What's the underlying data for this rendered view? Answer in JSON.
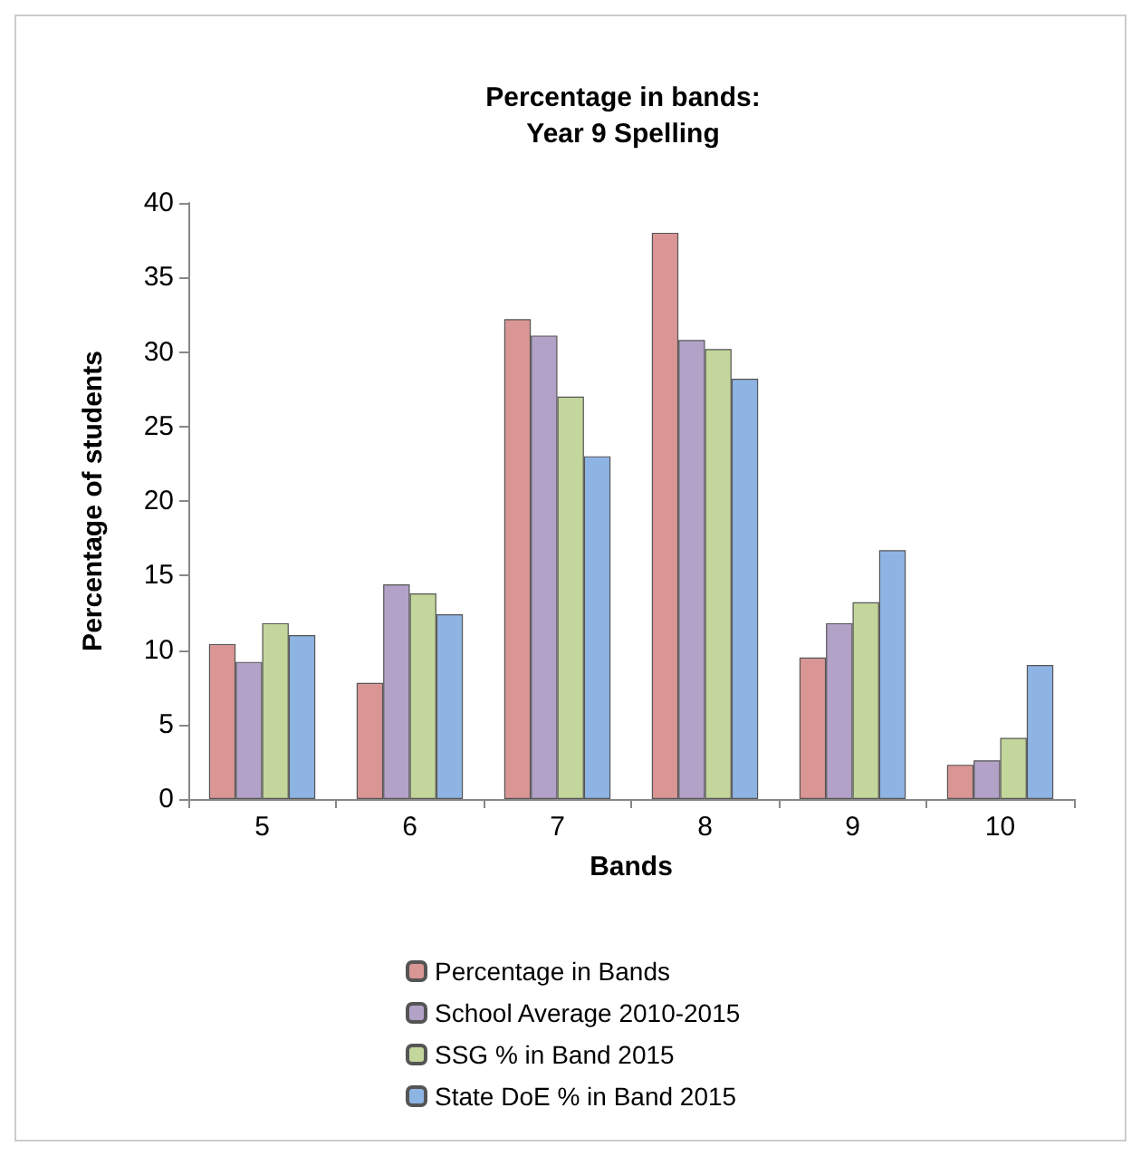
{
  "chart_data": {
    "type": "bar",
    "title": "Percentage in bands:\nYear 9 Spelling",
    "xlabel": "Bands",
    "ylabel": "Percentage of students",
    "categories": [
      "5",
      "6",
      "7",
      "8",
      "9",
      "10"
    ],
    "series": [
      {
        "name": "Percentage in Bands",
        "color": "#d99694",
        "values": [
          10.4,
          7.8,
          32.2,
          38.0,
          9.5,
          2.3
        ]
      },
      {
        "name": "School Average 2010-2015",
        "color": "#b3a2c7",
        "values": [
          9.2,
          14.4,
          31.1,
          30.8,
          11.8,
          2.6
        ]
      },
      {
        "name": "SSG % in Band 2015",
        "color": "#c3d69b",
        "values": [
          11.8,
          13.8,
          27.0,
          30.2,
          13.2,
          4.1
        ]
      },
      {
        "name": "State DoE % in Band 2015",
        "color": "#8eb4e3",
        "values": [
          11.0,
          12.4,
          23.0,
          28.2,
          16.7,
          9.0
        ]
      }
    ],
    "ylim": [
      0,
      40
    ],
    "yticks": [
      0,
      5,
      10,
      15,
      20,
      25,
      30,
      35,
      40
    ],
    "grid": false,
    "legend": "bottom"
  }
}
